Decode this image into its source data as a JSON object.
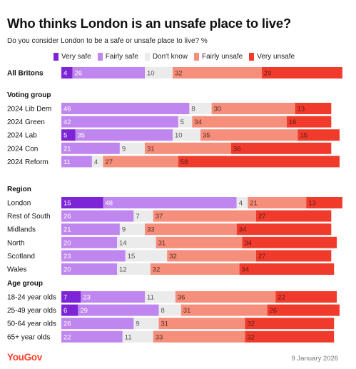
{
  "title": "Who thinks London is an unsafe place to live?",
  "subtitle": "Do you consider London to be a safe or unsafe place to live? %",
  "footer": {
    "logo": "YouGov",
    "date": "9 January 2026"
  },
  "colors": {
    "very_safe": "#7d25d6",
    "fairly_safe": "#c086ef",
    "dont_know": "#ebebeb",
    "fairly_unsafe": "#f58e7a",
    "very_unsafe": "#f03b2c"
  },
  "chart_data": {
    "type": "bar",
    "stacked": true,
    "orientation": "horizontal",
    "unit": "%",
    "series_names": [
      "Very safe",
      "Fairly safe",
      "Don't know",
      "Fairly unsafe",
      "Very unsafe"
    ],
    "groups": [
      {
        "label": "",
        "rows": [
          {
            "label": "All Britons",
            "values": [
              4,
              26,
              10,
              32,
              29
            ]
          }
        ]
      },
      {
        "label": "Voting group",
        "rows": [
          {
            "label": "2024 Lib Dem",
            "values": [
              null,
              46,
              8,
              30,
              13
            ]
          },
          {
            "label": "2024 Green",
            "values": [
              null,
              42,
              5,
              34,
              16
            ]
          },
          {
            "label": "2024 Lab",
            "values": [
              5,
              35,
              10,
              35,
              15
            ]
          },
          {
            "label": "2024 Con",
            "values": [
              null,
              21,
              9,
              31,
              36
            ]
          },
          {
            "label": "2024 Reform",
            "values": [
              null,
              11,
              4,
              27,
              58
            ]
          }
        ]
      },
      {
        "label": "Region",
        "rows": [
          {
            "label": "London",
            "values": [
              15,
              48,
              4,
              21,
              13
            ]
          },
          {
            "label": "Rest of South",
            "values": [
              null,
              26,
              7,
              37,
              27
            ]
          },
          {
            "label": "Midlands",
            "values": [
              null,
              21,
              9,
              33,
              34
            ]
          },
          {
            "label": "North",
            "values": [
              null,
              20,
              14,
              31,
              34
            ]
          },
          {
            "label": "Scotland",
            "values": [
              null,
              23,
              15,
              32,
              27
            ]
          },
          {
            "label": "Wales",
            "values": [
              null,
              20,
              12,
              32,
              34
            ]
          }
        ]
      },
      {
        "label": "Age group",
        "rows": [
          {
            "label": "18-24 year olds",
            "values": [
              7,
              23,
              11,
              36,
              22
            ]
          },
          {
            "label": "25-49 year olds",
            "values": [
              6,
              29,
              8,
              31,
              26
            ]
          },
          {
            "label": "50-64 year olds",
            "values": [
              null,
              26,
              9,
              31,
              32
            ]
          },
          {
            "label": "65+ year olds",
            "values": [
              null,
              22,
              11,
              33,
              32
            ]
          }
        ]
      }
    ]
  }
}
